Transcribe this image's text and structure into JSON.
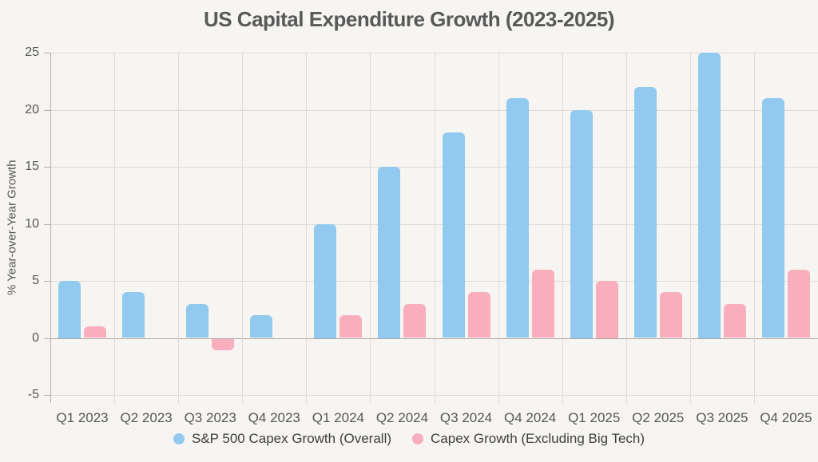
{
  "chart_data": {
    "type": "bar",
    "title": "US Capital Expenditure Growth (2023-2025)",
    "ylabel": "% Year-over-Year Growth",
    "xlabel": "",
    "categories": [
      "Q1 2023",
      "Q2 2023",
      "Q3 2023",
      "Q4 2023",
      "Q1 2024",
      "Q2 2024",
      "Q3 2024",
      "Q4 2024",
      "Q1 2025",
      "Q2 2025",
      "Q3 2025",
      "Q4 2025"
    ],
    "series": [
      {
        "name": "S&P 500 Capex Growth (Overall)",
        "color": "#92c9ef",
        "values": [
          5,
          4,
          3,
          2,
          10,
          15,
          18,
          21,
          20,
          22,
          25,
          21
        ]
      },
      {
        "name": "Capex Growth (Excluding Big Tech)",
        "color": "#f9aebe",
        "values": [
          1,
          0,
          -1,
          0,
          2,
          3,
          4,
          6,
          5,
          4,
          3,
          6
        ]
      }
    ],
    "ylim": [
      -5,
      25
    ],
    "y_ticks": [
      25,
      20,
      15,
      10,
      5,
      0,
      -5
    ],
    "grid": true,
    "legend_position": "bottom"
  },
  "colors": {
    "background": "#f7f5f2",
    "grid": "#dedbd7",
    "zero_line": "#a9a6a3",
    "axis": "#b3b0ad",
    "title_text": "#595959",
    "tick_text": "#555555",
    "legend_text": "#3e3e3e"
  }
}
